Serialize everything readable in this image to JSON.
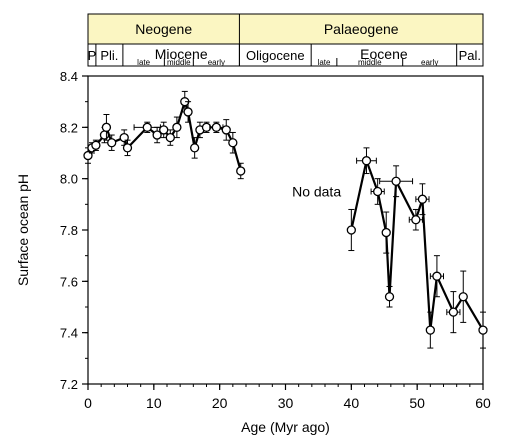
{
  "chart_data": {
    "type": "line",
    "xlabel": "Age (Myr ago)",
    "ylabel": "Surface ocean pH",
    "xlim": [
      0,
      60
    ],
    "ylim": [
      7.2,
      8.4
    ],
    "x_ticks": [
      0,
      10,
      20,
      30,
      40,
      50,
      60
    ],
    "x_minor_step": 2,
    "y_ticks": [
      "7.2",
      "7.4",
      "7.6",
      "7.8",
      "8.0",
      "8.2",
      "8.4"
    ],
    "y_tick_values": [
      7.2,
      7.4,
      7.6,
      7.8,
      8.0,
      8.2,
      8.4
    ],
    "annotation": "No data",
    "annotation_pos": {
      "x": 31,
      "y": 7.93
    },
    "colors": {
      "highlight": "#fbf6c2",
      "line": "#000000"
    },
    "periods": [
      {
        "label": "Neogene",
        "start": 0,
        "end": 23,
        "highlight": true
      },
      {
        "label": "Palaeogene",
        "start": 23,
        "end": 60,
        "highlight": true
      }
    ],
    "epochs": [
      {
        "label": "P",
        "start": 0,
        "end": 1.2
      },
      {
        "label": "Pli.",
        "start": 1.2,
        "end": 5.3
      },
      {
        "label": "Miocene",
        "start": 5.3,
        "end": 23
      },
      {
        "label": "Oligocene",
        "start": 23,
        "end": 33.9
      },
      {
        "label": "Eocene",
        "start": 33.9,
        "end": 56
      },
      {
        "label": "Pal.",
        "start": 56,
        "end": 60
      }
    ],
    "subdivisions": [
      {
        "label": "late",
        "start": 5.3,
        "end": 11.6
      },
      {
        "label": "middle",
        "start": 11.6,
        "end": 16
      },
      {
        "label": "early",
        "start": 16,
        "end": 23
      },
      {
        "label": "late",
        "start": 33.9,
        "end": 37.8
      },
      {
        "label": "middle",
        "start": 37.8,
        "end": 47.8
      },
      {
        "label": "early",
        "start": 47.8,
        "end": 56
      }
    ],
    "series": [
      {
        "segment": "neogene",
        "points": [
          {
            "x": 0.0,
            "y": 8.09,
            "yerr": 0.03
          },
          {
            "x": 0.6,
            "y": 8.12,
            "yerr": 0.02
          },
          {
            "x": 1.2,
            "y": 8.13,
            "yerr": 0.02
          },
          {
            "x": 2.5,
            "y": 8.17,
            "yerr": 0.03
          },
          {
            "x": 2.8,
            "y": 8.2,
            "yerr": 0.05
          },
          {
            "x": 3.6,
            "y": 8.14,
            "yerr": 0.03
          },
          {
            "x": 5.5,
            "y": 8.16,
            "yerr": 0.03
          },
          {
            "x": 6.0,
            "y": 8.12,
            "yerr": 0.03
          },
          {
            "x": 9.0,
            "y": 8.2,
            "yerr": 0.02,
            "xerr": 2
          },
          {
            "x": 10.5,
            "y": 8.17,
            "yerr": 0.03
          },
          {
            "x": 11.5,
            "y": 8.19,
            "yerr": 0.03
          },
          {
            "x": 12.5,
            "y": 8.16,
            "yerr": 0.03
          },
          {
            "x": 13.5,
            "y": 8.2,
            "yerr": 0.04
          },
          {
            "x": 14.7,
            "y": 8.3,
            "yerr": 0.04
          },
          {
            "x": 15.2,
            "y": 8.26,
            "yerr": 0.04
          },
          {
            "x": 16.2,
            "y": 8.12,
            "yerr": 0.04
          },
          {
            "x": 17.0,
            "y": 8.19,
            "yerr": 0.03
          },
          {
            "x": 18.0,
            "y": 8.2,
            "yerr": 0.02
          },
          {
            "x": 19.5,
            "y": 8.2,
            "yerr": 0.02,
            "xerr": 1
          },
          {
            "x": 21.0,
            "y": 8.19,
            "yerr": 0.04
          },
          {
            "x": 22.0,
            "y": 8.14,
            "yerr": 0.04
          },
          {
            "x": 23.2,
            "y": 8.03,
            "yerr": 0.03
          }
        ]
      },
      {
        "segment": "palaeogene",
        "points": [
          {
            "x": 40.0,
            "y": 7.8,
            "yerr": 0.08
          },
          {
            "x": 42.3,
            "y": 8.07,
            "yerr": 0.05,
            "xerr": 1.5
          },
          {
            "x": 44.0,
            "y": 7.95,
            "yerr": 0.05,
            "xerr": 1
          },
          {
            "x": 45.3,
            "y": 7.79,
            "yerr": 0.08
          },
          {
            "x": 45.8,
            "y": 7.54,
            "yerr": 0.04
          },
          {
            "x": 46.8,
            "y": 7.99,
            "yerr": 0.06,
            "xerr": 2.5
          },
          {
            "x": 49.8,
            "y": 7.84,
            "yerr": 0.04,
            "xerr": 1
          },
          {
            "x": 50.8,
            "y": 7.92,
            "yerr": 0.06,
            "xerr": 1
          },
          {
            "x": 52.0,
            "y": 7.41,
            "yerr": 0.07
          },
          {
            "x": 53.0,
            "y": 7.62,
            "yerr": 0.08,
            "xerr": 1
          },
          {
            "x": 55.5,
            "y": 7.48,
            "yerr": 0.08,
            "xerr": 1
          },
          {
            "x": 57.0,
            "y": 7.54,
            "yerr": 0.1
          },
          {
            "x": 60.0,
            "y": 7.41,
            "yerr": 0.07
          }
        ]
      }
    ]
  }
}
